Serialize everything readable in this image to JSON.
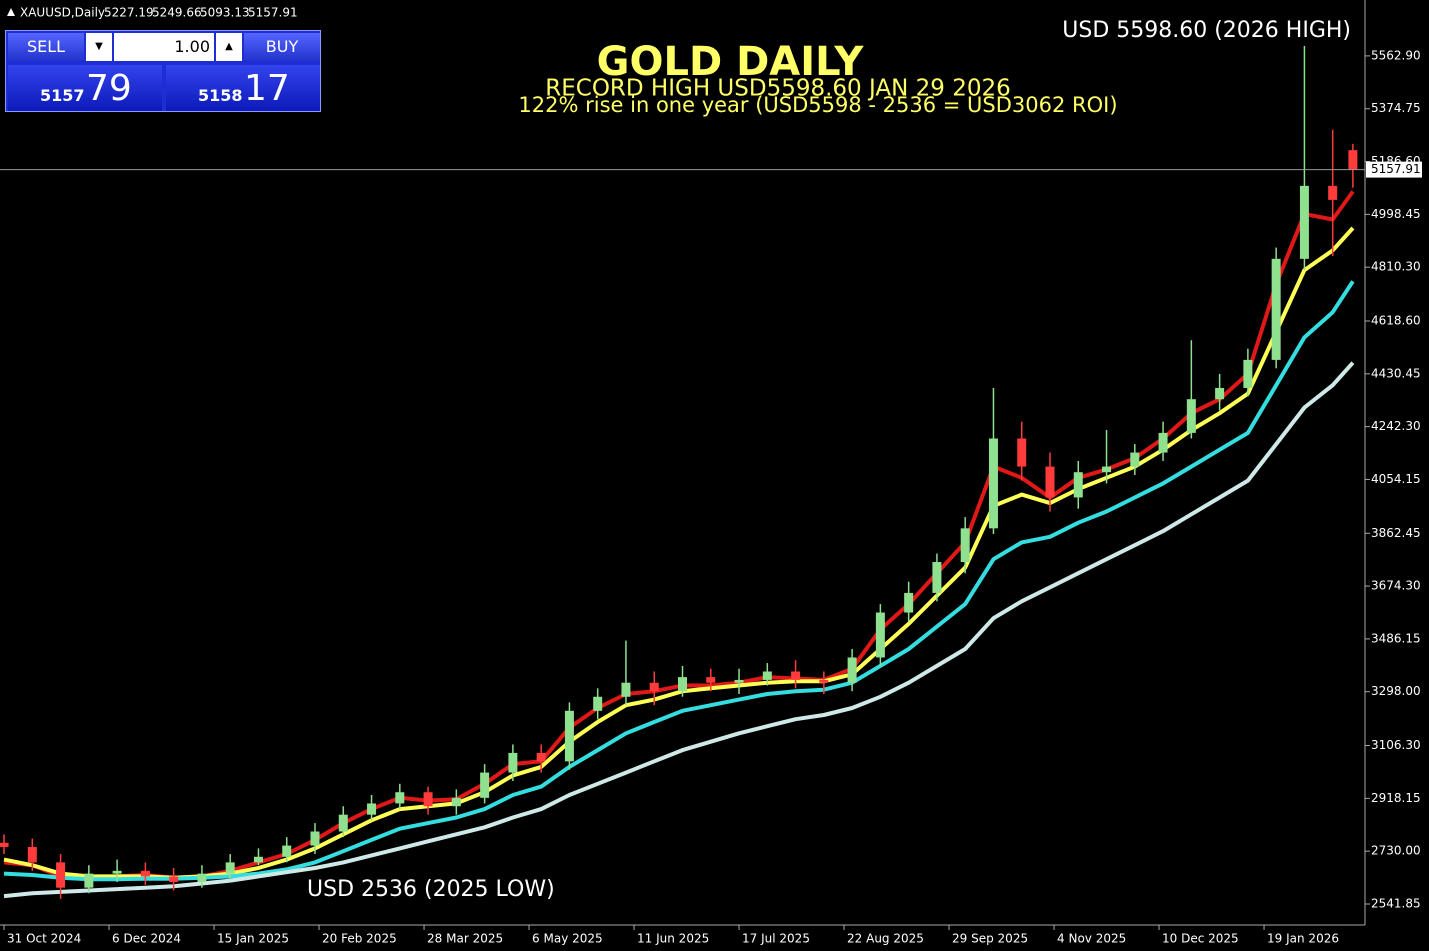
{
  "chart_data": {
    "type": "candlestick",
    "title": "GOLD DAILY",
    "symbol": "XAUUSD,Daily",
    "annotations": [
      "RECORD HIGH USD5598.60   JAN 29 2026",
      "122% rise in one year  (USD5598 - 2536  =  USD3062  ROI)",
      "USD 5598.60  (2026 HIGH)",
      "USD 2536 (2025 LOW)"
    ],
    "x": [
      0,
      7,
      14,
      21,
      28,
      35,
      42,
      49,
      56,
      63,
      70,
      77,
      84,
      91,
      98,
      105,
      112,
      119,
      126,
      133,
      140,
      147,
      154,
      161,
      168,
      175,
      182,
      189,
      196,
      203,
      210,
      217,
      224,
      231,
      238,
      245,
      252,
      259,
      266,
      273,
      280,
      287,
      294,
      301,
      308,
      315,
      322,
      329,
      334
    ],
    "open": [
      2760,
      2745,
      2690,
      2600,
      2650,
      2660,
      2640,
      2620,
      2650,
      2690,
      2710,
      2750,
      2800,
      2860,
      2900,
      2940,
      2890,
      2920,
      3010,
      3080,
      3050,
      3230,
      3280,
      3330,
      3300,
      3350,
      3330,
      3340,
      3370,
      3340,
      3330,
      3420,
      3580,
      3650,
      3760,
      3880,
      4200,
      4100,
      3990,
      4080,
      4100,
      4150,
      4220,
      4340,
      4380,
      4480,
      4840,
      5100,
      5227.19
    ],
    "high": [
      2790,
      2775,
      2720,
      2680,
      2700,
      2690,
      2670,
      2680,
      2720,
      2740,
      2780,
      2830,
      2890,
      2930,
      2970,
      2960,
      2950,
      3040,
      3110,
      3110,
      3260,
      3310,
      3480,
      3370,
      3390,
      3380,
      3380,
      3400,
      3410,
      3370,
      3450,
      3610,
      3690,
      3790,
      3920,
      4380,
      4260,
      4150,
      4120,
      4230,
      4180,
      4260,
      4550,
      4430,
      4520,
      4880,
      5598.6,
      5300,
      5249.66
    ],
    "low": [
      2720,
      2660,
      2560,
      2580,
      2620,
      2610,
      2590,
      2600,
      2630,
      2680,
      2690,
      2720,
      2780,
      2840,
      2880,
      2860,
      2860,
      2900,
      2980,
      3010,
      3020,
      3200,
      3250,
      3250,
      3280,
      3300,
      3290,
      3320,
      3310,
      3290,
      3300,
      3390,
      3550,
      3620,
      3720,
      3860,
      4050,
      3940,
      3950,
      4040,
      4070,
      4120,
      4200,
      4300,
      4350,
      4450,
      4800,
      4850,
      5093.13
    ],
    "close": [
      2745,
      2690,
      2600,
      2650,
      2660,
      2640,
      2620,
      2650,
      2690,
      2710,
      2750,
      2800,
      2860,
      2900,
      2940,
      2890,
      2920,
      3010,
      3080,
      3050,
      3230,
      3280,
      3330,
      3300,
      3350,
      3330,
      3340,
      3370,
      3340,
      3330,
      3420,
      3580,
      3650,
      3760,
      3880,
      4200,
      4100,
      3990,
      4080,
      4100,
      4150,
      4220,
      4340,
      4380,
      4480,
      4840,
      5100,
      5050,
      5157.91
    ],
    "up_color": "#8fe08f",
    "down_color": "#ff3b3b",
    "series": [
      {
        "color": "#e01818",
        "values": [
          2690,
          2680,
          2640,
          2630,
          2640,
          2645,
          2635,
          2640,
          2660,
          2690,
          2720,
          2770,
          2830,
          2880,
          2920,
          2910,
          2915,
          2970,
          3040,
          3050,
          3170,
          3240,
          3290,
          3300,
          3320,
          3320,
          3330,
          3350,
          3345,
          3340,
          3380,
          3520,
          3610,
          3720,
          3830,
          4100,
          4060,
          3990,
          4060,
          4090,
          4130,
          4200,
          4290,
          4340,
          4430,
          4750,
          5000,
          4980,
          5080
        ]
      },
      {
        "color": "#ffff55",
        "values": [
          2700,
          2680,
          2650,
          2640,
          2640,
          2640,
          2635,
          2640,
          2650,
          2670,
          2700,
          2740,
          2790,
          2840,
          2880,
          2890,
          2900,
          2940,
          3000,
          3030,
          3120,
          3190,
          3250,
          3270,
          3300,
          3310,
          3320,
          3330,
          3335,
          3335,
          3360,
          3450,
          3540,
          3640,
          3740,
          3960,
          4000,
          3970,
          4020,
          4060,
          4100,
          4160,
          4230,
          4290,
          4360,
          4580,
          4800,
          4870,
          4950
        ]
      },
      {
        "color": "#33dde0",
        "values": [
          2650,
          2645,
          2635,
          2630,
          2630,
          2632,
          2632,
          2635,
          2640,
          2650,
          2665,
          2690,
          2730,
          2770,
          2810,
          2830,
          2850,
          2880,
          2930,
          2960,
          3030,
          3090,
          3150,
          3190,
          3230,
          3250,
          3270,
          3290,
          3300,
          3305,
          3330,
          3390,
          3450,
          3530,
          3610,
          3770,
          3830,
          3850,
          3900,
          3940,
          3990,
          4040,
          4100,
          4160,
          4220,
          4390,
          4560,
          4650,
          4760
        ]
      },
      {
        "color": "#cfe8e8",
        "values": [
          2570,
          2580,
          2585,
          2590,
          2595,
          2600,
          2605,
          2615,
          2625,
          2640,
          2655,
          2670,
          2690,
          2715,
          2740,
          2765,
          2790,
          2815,
          2850,
          2880,
          2930,
          2970,
          3010,
          3050,
          3090,
          3120,
          3150,
          3175,
          3200,
          3215,
          3240,
          3280,
          3330,
          3390,
          3450,
          3560,
          3620,
          3670,
          3720,
          3770,
          3820,
          3870,
          3930,
          3990,
          4050,
          4180,
          4310,
          4390,
          4470
        ]
      }
    ],
    "xlim": [
      -1,
      337
    ],
    "xticks": [
      {
        "value": 0,
        "label": "31 Oct 2024"
      },
      {
        "value": 26,
        "label": "6 Dec 2024"
      },
      {
        "value": 52,
        "label": "15 Jan 2025"
      },
      {
        "value": 78,
        "label": "20 Feb 2025"
      },
      {
        "value": 104,
        "label": "28 Mar 2025"
      },
      {
        "value": 130,
        "label": "6 May 2025"
      },
      {
        "value": 156,
        "label": "11 Jun 2025"
      },
      {
        "value": 182,
        "label": "17 Jul 2025"
      },
      {
        "value": 208,
        "label": "22 Aug 2025"
      },
      {
        "value": 234,
        "label": "29 Sep 2025"
      },
      {
        "value": 260,
        "label": "4 Nov 2025"
      },
      {
        "value": 286,
        "label": "10 Dec 2025"
      },
      {
        "value": 312,
        "label": "19 Jan 2026"
      }
    ],
    "ylim": [
      2467,
      5762
    ],
    "yticks": [
      2541.85,
      {
        "value": 2730,
        "label": "2730.00"
      },
      2918.15,
      {
        "value": 3106.3,
        "label": "3106.30"
      },
      {
        "value": 3298,
        "label": "3298.00"
      },
      3486.15,
      {
        "value": 3674.3,
        "label": "3674.30"
      },
      3862.45,
      4054.15,
      {
        "value": 4242.3,
        "label": "4242.30"
      },
      4430.45,
      {
        "value": 4618.6,
        "label": "4618.60"
      },
      {
        "value": 4810.3,
        "label": "4810.30"
      },
      4998.45,
      {
        "value": 5186.6,
        "label": "5186.60"
      },
      5374.75,
      {
        "value": 5562.9,
        "label": "5562.90"
      }
    ]
  },
  "trade_panel": {
    "sell": "SELL",
    "buy": "BUY",
    "volume": "1.00",
    "bid_big": "5157",
    "bid_small": "79",
    "ask_big": "5158",
    "ask_small": "17"
  }
}
